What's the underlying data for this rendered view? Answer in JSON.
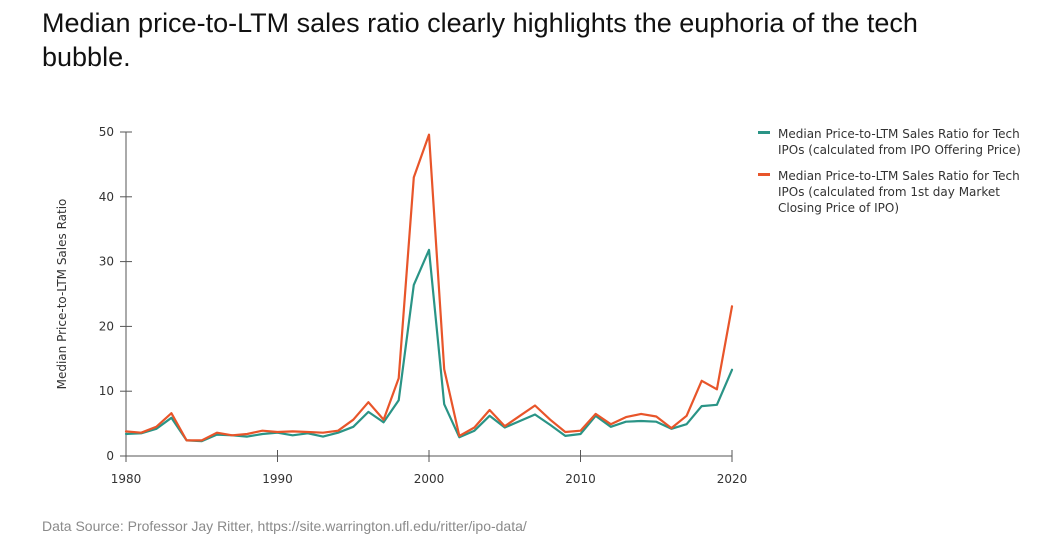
{
  "headline": "Median price-to-LTM sales ratio clearly highlights the euphoria of the tech bubble.",
  "source": "Data Source: Professor Jay Ritter, https://site.warrington.ufl.edu/ritter/ipo-data/",
  "colors": {
    "offer_series": "#2a9486",
    "firstday_series": "#e8552a",
    "axis": "#555555"
  },
  "chart_data": {
    "type": "line",
    "ylabel": "Median Price-to-LTM Sales Ratio",
    "xlabel": "",
    "xlim": [
      1980,
      2020
    ],
    "ylim": [
      0,
      50
    ],
    "x_ticks": [
      "1980",
      "1990",
      "2000",
      "2010",
      "2020"
    ],
    "y_ticks": [
      "0",
      "10",
      "20",
      "30",
      "40",
      "50"
    ],
    "grid": false,
    "legend_position": "right",
    "x": [
      1980,
      1981,
      1982,
      1983,
      1984,
      1985,
      1986,
      1987,
      1988,
      1989,
      1990,
      1991,
      1992,
      1993,
      1994,
      1995,
      1996,
      1997,
      1998,
      1999,
      2000,
      2001,
      2002,
      2003,
      2004,
      2005,
      2006,
      2007,
      2008,
      2009,
      2010,
      2011,
      2012,
      2013,
      2014,
      2015,
      2016,
      2017,
      2018,
      2019,
      2020
    ],
    "series": [
      {
        "name": "Median Price-to-LTM Sales Ratio for Tech IPOs (calculated from IPO Offering Price)",
        "color": "#2a9486",
        "values": [
          3.4,
          3.5,
          4.2,
          5.9,
          2.4,
          2.3,
          3.3,
          3.2,
          3.0,
          3.4,
          3.6,
          3.2,
          3.5,
          3.0,
          3.6,
          4.5,
          6.8,
          5.2,
          8.6,
          26.4,
          31.8,
          8.0,
          2.9,
          3.9,
          6.2,
          4.4,
          5.4,
          6.4,
          4.8,
          3.1,
          3.4,
          6.2,
          4.5,
          5.3,
          5.4,
          5.3,
          4.2,
          4.9,
          7.7,
          7.9,
          13.3
        ]
      },
      {
        "name": "Median Price-to-LTM Sales Ratio for Tech IPOs (calculated from 1st day Market Closing Price of IPO)",
        "color": "#e8552a",
        "values": [
          3.8,
          3.6,
          4.5,
          6.6,
          2.4,
          2.4,
          3.6,
          3.2,
          3.4,
          3.9,
          3.7,
          3.8,
          3.7,
          3.6,
          3.9,
          5.6,
          8.3,
          5.6,
          12.0,
          43.0,
          49.6,
          13.4,
          3.1,
          4.4,
          7.1,
          4.6,
          6.2,
          7.8,
          5.6,
          3.7,
          3.9,
          6.5,
          4.9,
          6.0,
          6.5,
          6.1,
          4.3,
          6.2,
          11.6,
          10.3,
          23.1
        ]
      }
    ]
  }
}
